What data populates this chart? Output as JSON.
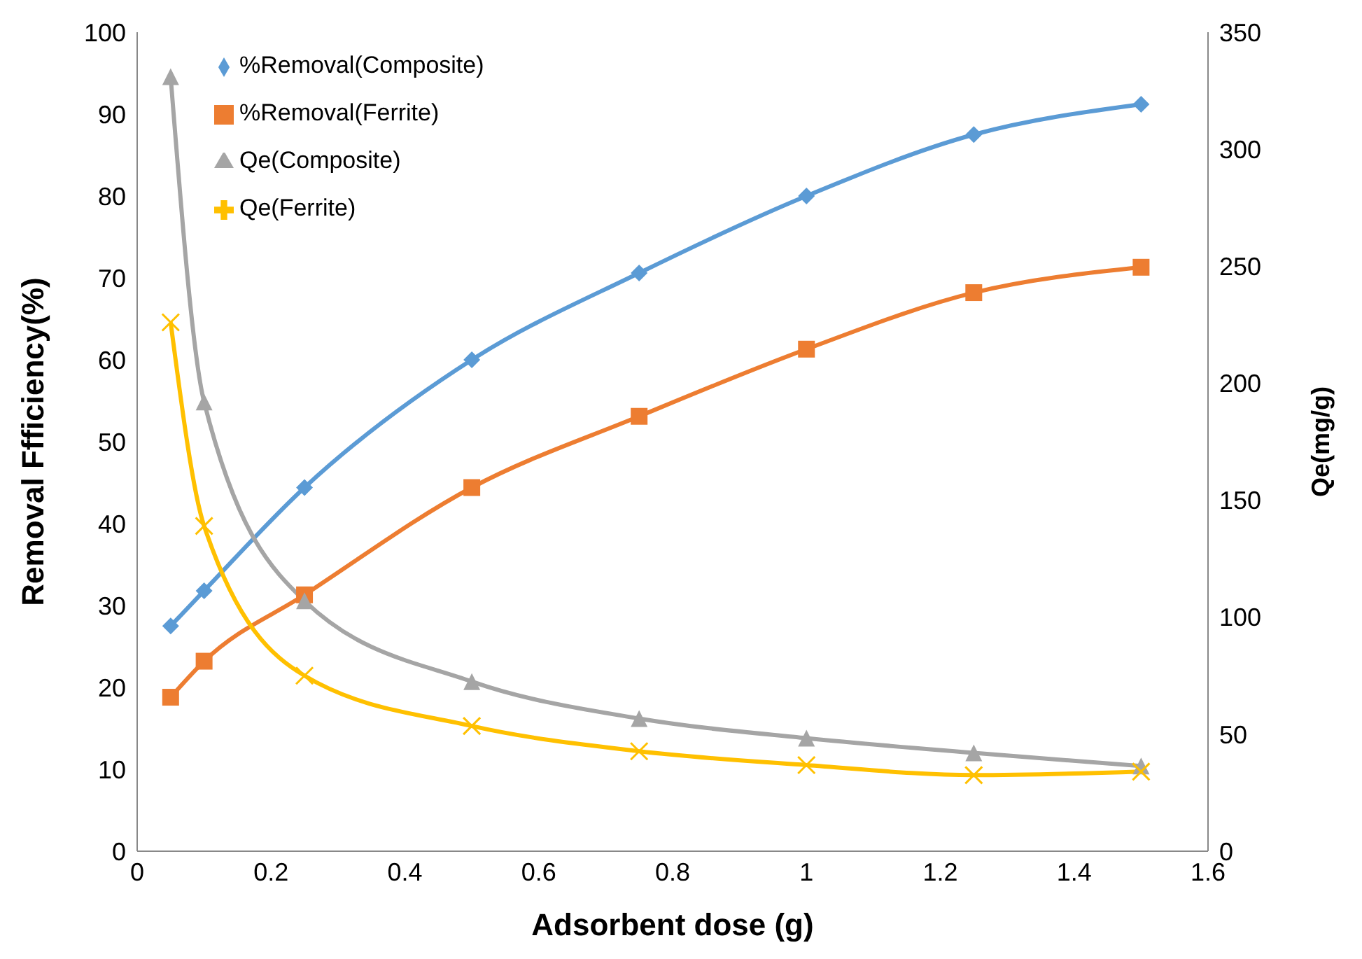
{
  "chart_data": {
    "type": "line",
    "xlabel": "Adsorbent dose (g)",
    "ylabel": "Removal Ffficiency(%)",
    "y2label": "Qe(mg/g)",
    "x": [
      0.05,
      0.1,
      0.25,
      0.5,
      0.75,
      1,
      1.25,
      1.5
    ],
    "xlim": [
      0,
      1.6
    ],
    "xticks": [
      0,
      0.2,
      0.4,
      0.6,
      0.8,
      1,
      1.2,
      1.4,
      1.6
    ],
    "ylim": [
      0,
      100
    ],
    "yticks": [
      0,
      10,
      20,
      30,
      40,
      50,
      60,
      70,
      80,
      90,
      100
    ],
    "y2lim": [
      0,
      350
    ],
    "y2ticks": [
      0,
      50,
      100,
      150,
      200,
      250,
      300,
      350
    ],
    "grid": false,
    "legend": "top left",
    "series": [
      {
        "name": "%Removal(Composite)",
        "color": "#5b9bd5",
        "marker": "diamond",
        "values": [
          27.5,
          31.8,
          44.4,
          60,
          70.6,
          80,
          87.5,
          91.2
        ]
      },
      {
        "name": "%Removal(Ferrite)",
        "color": "#ed7d31",
        "marker": "square",
        "values": [
          18.8,
          23.2,
          31.3,
          44.4,
          53.1,
          61.3,
          68.2,
          71.3
        ]
      },
      {
        "name": "Qe(Composite)",
        "color": "#a5a5a5",
        "marker": "triangle",
        "axis": "y2",
        "values": [
          331,
          192,
          107,
          72.5,
          56.7,
          48.3,
          42,
          36.4
        ]
      },
      {
        "name": "Qe(Ferrite)",
        "color": "#ffc000",
        "marker": "cross",
        "axis": "y2",
        "values": [
          226,
          139,
          75,
          53.5,
          42.7,
          36.8,
          32.5,
          34
        ]
      }
    ]
  }
}
